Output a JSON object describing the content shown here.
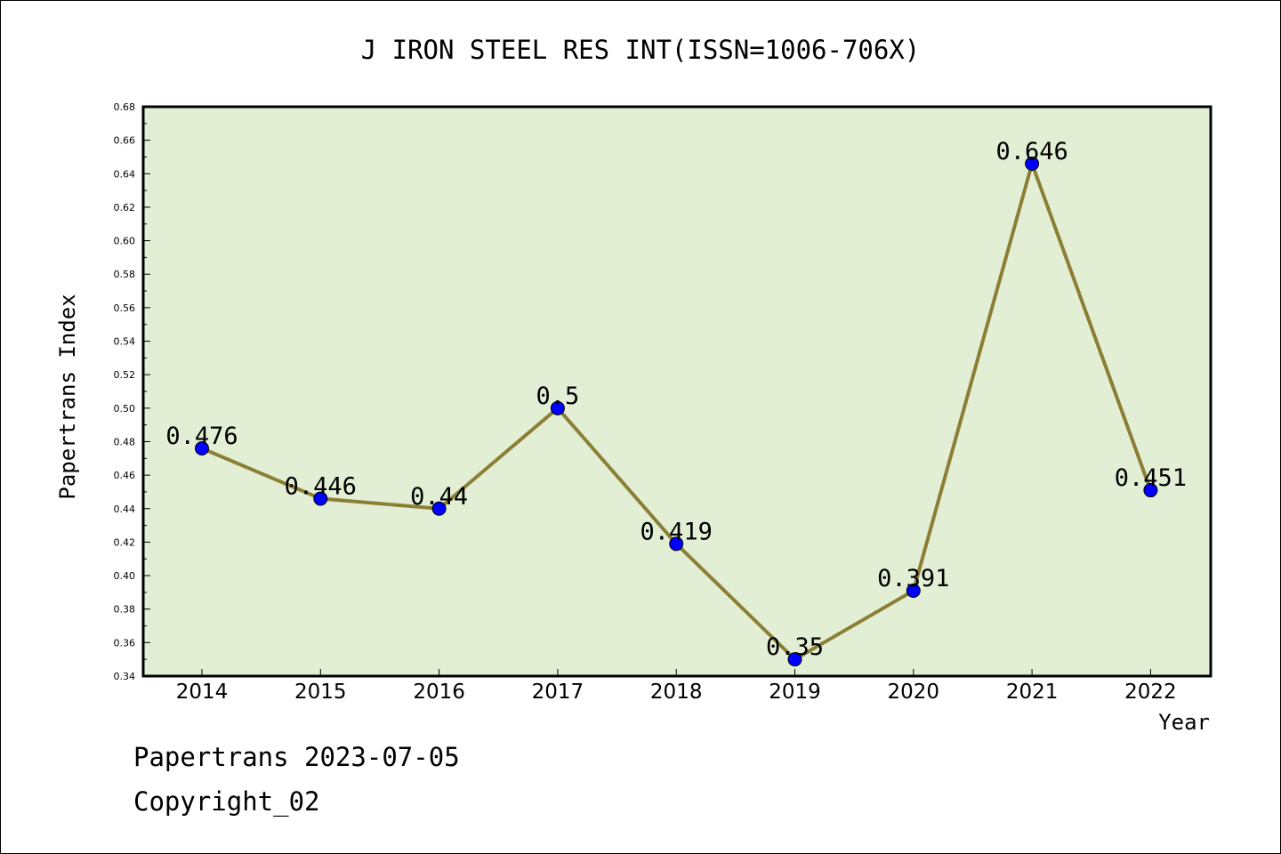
{
  "chart_data": {
    "type": "line",
    "title": "J IRON STEEL RES INT(ISSN=1006-706X)",
    "xlabel": "Year",
    "ylabel": "Papertrans Index",
    "categories": [
      "2014",
      "2015",
      "2016",
      "2017",
      "2018",
      "2019",
      "2020",
      "2021",
      "2022"
    ],
    "values": [
      0.476,
      0.446,
      0.44,
      0.5,
      0.419,
      0.35,
      0.391,
      0.646,
      0.451
    ],
    "data_labels": [
      "0.476",
      "0.446",
      "0.44",
      "0.5",
      "0.419",
      "0.35",
      "0.391",
      "0.646",
      "0.451"
    ],
    "ylim": [
      0.34,
      0.68
    ],
    "yticks": [
      "0.34",
      "0.36",
      "0.38",
      "0.40",
      "0.42",
      "0.44",
      "0.46",
      "0.48",
      "0.50",
      "0.52",
      "0.54",
      "0.56",
      "0.58",
      "0.60",
      "0.62",
      "0.64",
      "0.66",
      "0.68"
    ],
    "grid": false,
    "colors": {
      "plot_background": "#e2efd5",
      "line": "#8b7f35",
      "marker": "#0000ff"
    }
  },
  "footer": {
    "line1": "Papertrans 2023-07-05",
    "line2": "Copyright_02"
  }
}
